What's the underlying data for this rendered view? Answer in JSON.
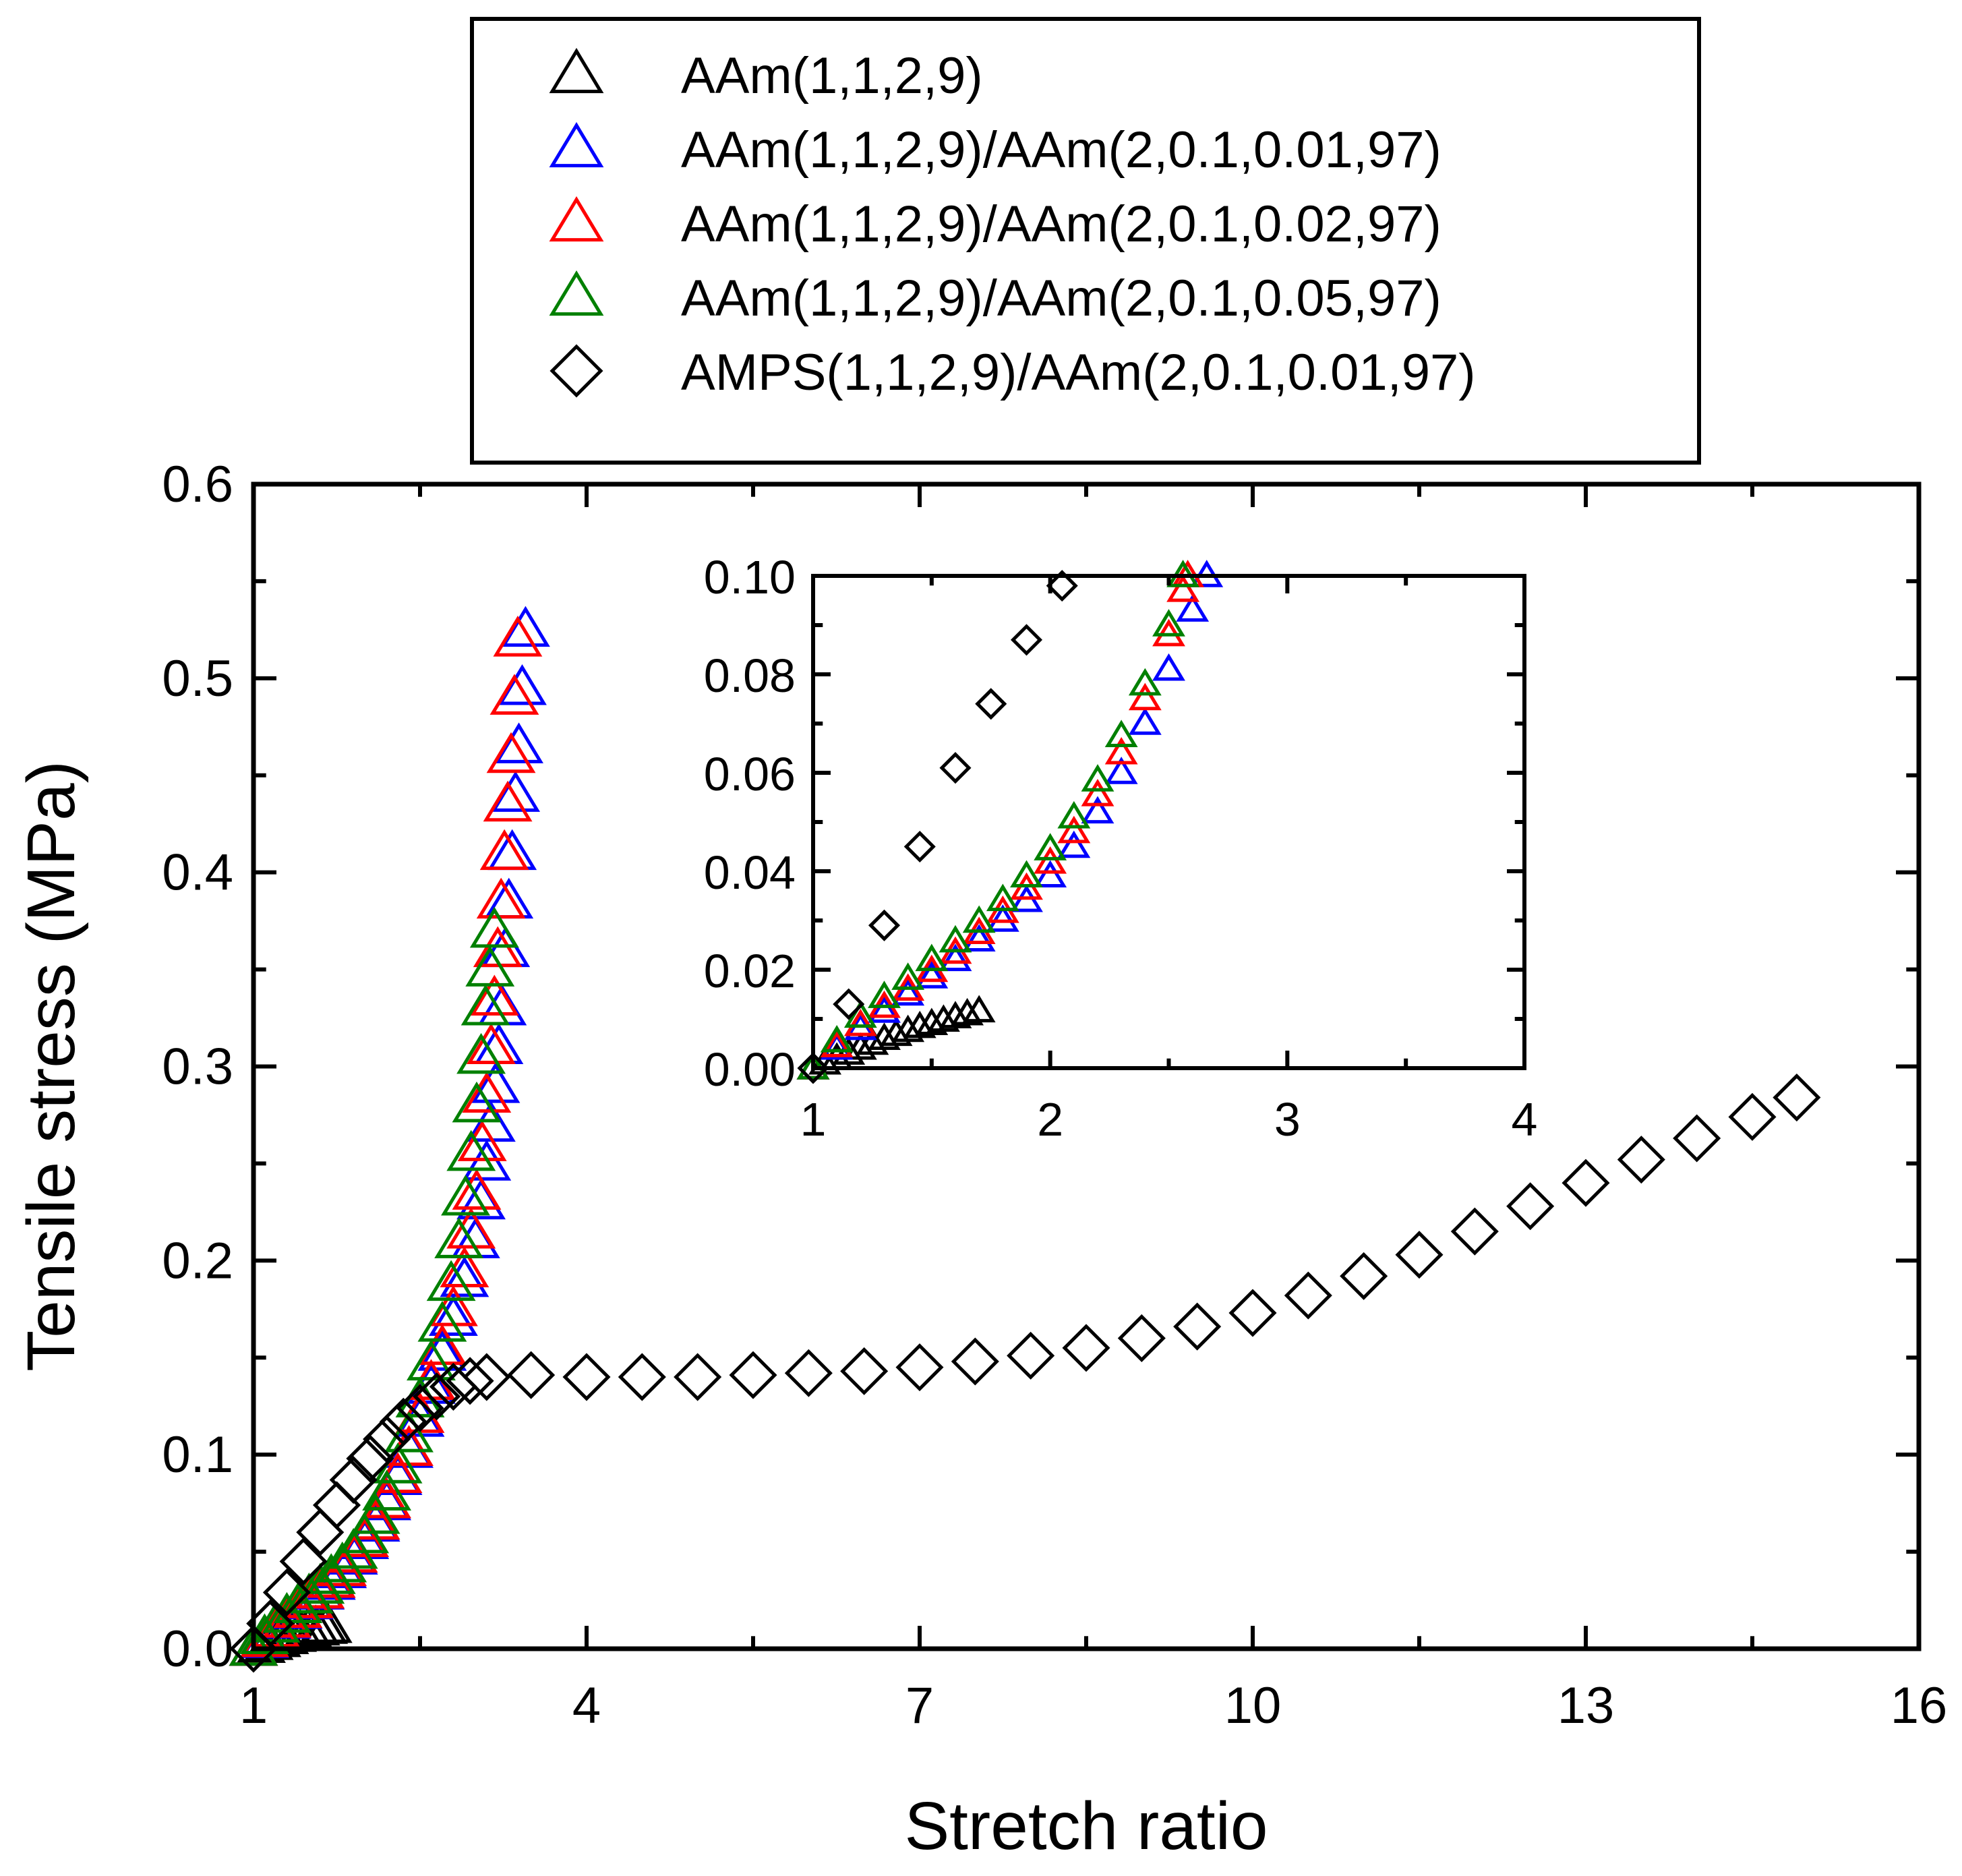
{
  "chart_data": {
    "type": "scatter",
    "xlabel": "Stretch ratio",
    "ylabel": "Tensile stress (MPa)",
    "xlim": [
      1,
      16
    ],
    "ylim": [
      0,
      0.6
    ],
    "xticks": [
      1,
      4,
      7,
      10,
      13,
      16
    ],
    "yticks": [
      "0.0",
      "0.1",
      "0.2",
      "0.3",
      "0.4",
      "0.5",
      "0.6"
    ],
    "legend_position": "top-center, outside plot",
    "grid": false,
    "series": [
      {
        "name": "AAm(1,1,2,9)",
        "marker": "triangle",
        "color": "#000000",
        "points": [
          [
            1.0,
            0.0
          ],
          [
            1.07,
            0.0015
          ],
          [
            1.14,
            0.003
          ],
          [
            1.21,
            0.0045
          ],
          [
            1.28,
            0.006
          ],
          [
            1.35,
            0.0072
          ],
          [
            1.42,
            0.0085
          ],
          [
            1.49,
            0.0095
          ],
          [
            1.56,
            0.0105
          ],
          [
            1.63,
            0.0113
          ],
          [
            1.67,
            0.0118
          ]
        ]
      },
      {
        "name": "AAm(1,1,2,9)/AAm(2,0.1,0.01,97)",
        "marker": "triangle",
        "color": "#0000ff",
        "points": [
          [
            1.0,
            0.0
          ],
          [
            1.1,
            0.004
          ],
          [
            1.2,
            0.009
          ],
          [
            1.3,
            0.014
          ],
          [
            1.4,
            0.019
          ],
          [
            1.5,
            0.024
          ],
          [
            1.6,
            0.029
          ],
          [
            1.7,
            0.034
          ],
          [
            1.8,
            0.04
          ],
          [
            1.9,
            0.047
          ],
          [
            2.0,
            0.055
          ],
          [
            2.1,
            0.064
          ],
          [
            2.2,
            0.075
          ],
          [
            2.3,
            0.088
          ],
          [
            2.4,
            0.102
          ],
          [
            2.5,
            0.118
          ],
          [
            2.6,
            0.135
          ],
          [
            2.7,
            0.152
          ],
          [
            2.8,
            0.17
          ],
          [
            2.9,
            0.19
          ],
          [
            3.0,
            0.21
          ],
          [
            3.05,
            0.23
          ],
          [
            3.1,
            0.25
          ],
          [
            3.14,
            0.27
          ],
          [
            3.18,
            0.29
          ],
          [
            3.21,
            0.31
          ],
          [
            3.24,
            0.33
          ],
          [
            3.27,
            0.36
          ],
          [
            3.3,
            0.385
          ],
          [
            3.33,
            0.41
          ],
          [
            3.36,
            0.44
          ],
          [
            3.39,
            0.465
          ],
          [
            3.42,
            0.495
          ],
          [
            3.45,
            0.525
          ]
        ]
      },
      {
        "name": "AAm(1,1,2,9)/AAm(2,0.1,0.02,97)",
        "marker": "triangle",
        "color": "#ff0000",
        "points": [
          [
            1.0,
            0.0
          ],
          [
            1.1,
            0.0045
          ],
          [
            1.2,
            0.0095
          ],
          [
            1.3,
            0.0145
          ],
          [
            1.4,
            0.0195
          ],
          [
            1.5,
            0.0245
          ],
          [
            1.6,
            0.0295
          ],
          [
            1.7,
            0.035
          ],
          [
            1.8,
            0.041
          ],
          [
            1.9,
            0.048
          ],
          [
            2.0,
            0.056
          ],
          [
            2.1,
            0.065
          ],
          [
            2.2,
            0.076
          ],
          [
            2.3,
            0.089
          ],
          [
            2.4,
            0.103
          ],
          [
            2.5,
            0.12
          ],
          [
            2.6,
            0.137
          ],
          [
            2.7,
            0.155
          ],
          [
            2.8,
            0.175
          ],
          [
            2.9,
            0.195
          ],
          [
            2.96,
            0.215
          ],
          [
            3.01,
            0.235
          ],
          [
            3.06,
            0.26
          ],
          [
            3.1,
            0.285
          ],
          [
            3.14,
            0.31
          ],
          [
            3.17,
            0.335
          ],
          [
            3.2,
            0.36
          ],
          [
            3.23,
            0.385
          ],
          [
            3.26,
            0.41
          ],
          [
            3.29,
            0.435
          ],
          [
            3.32,
            0.46
          ],
          [
            3.35,
            0.49
          ],
          [
            3.38,
            0.52
          ]
        ]
      },
      {
        "name": "AAm(1,1,2,9)/AAm(2,0.1,0.05,97)",
        "marker": "triangle",
        "color": "#008000",
        "points": [
          [
            1.0,
            0.0
          ],
          [
            1.1,
            0.006
          ],
          [
            1.2,
            0.012
          ],
          [
            1.3,
            0.017
          ],
          [
            1.4,
            0.022
          ],
          [
            1.5,
            0.027
          ],
          [
            1.6,
            0.032
          ],
          [
            1.7,
            0.037
          ],
          [
            1.8,
            0.043
          ],
          [
            1.9,
            0.05
          ],
          [
            2.0,
            0.058
          ],
          [
            2.1,
            0.068
          ],
          [
            2.2,
            0.08
          ],
          [
            2.3,
            0.094
          ],
          [
            2.4,
            0.11
          ],
          [
            2.5,
            0.128
          ],
          [
            2.6,
            0.147
          ],
          [
            2.7,
            0.167
          ],
          [
            2.78,
            0.188
          ],
          [
            2.85,
            0.21
          ],
          [
            2.91,
            0.232
          ],
          [
            2.96,
            0.255
          ],
          [
            3.01,
            0.28
          ],
          [
            3.05,
            0.305
          ],
          [
            3.09,
            0.33
          ],
          [
            3.13,
            0.35
          ],
          [
            3.17,
            0.37
          ]
        ]
      },
      {
        "name": "AMPS(1,1,2,9)/AAm(2,0.1,0.01,97)",
        "marker": "diamond",
        "color": "#000000",
        "points": [
          [
            1.0,
            0.0
          ],
          [
            1.15,
            0.013
          ],
          [
            1.3,
            0.029
          ],
          [
            1.45,
            0.045
          ],
          [
            1.6,
            0.06
          ],
          [
            1.75,
            0.074
          ],
          [
            1.9,
            0.087
          ],
          [
            2.05,
            0.098
          ],
          [
            2.2,
            0.108
          ],
          [
            2.35,
            0.117
          ],
          [
            2.5,
            0.124
          ],
          [
            2.65,
            0.13
          ],
          [
            2.8,
            0.135
          ],
          [
            2.95,
            0.138
          ],
          [
            3.1,
            0.14
          ],
          [
            3.5,
            0.141
          ],
          [
            4.0,
            0.14
          ],
          [
            4.5,
            0.14
          ],
          [
            5.0,
            0.14
          ],
          [
            5.5,
            0.141
          ],
          [
            6.0,
            0.142
          ],
          [
            6.5,
            0.143
          ],
          [
            7.0,
            0.145
          ],
          [
            7.5,
            0.148
          ],
          [
            8.0,
            0.151
          ],
          [
            8.5,
            0.155
          ],
          [
            9.0,
            0.16
          ],
          [
            9.5,
            0.166
          ],
          [
            10.0,
            0.173
          ],
          [
            10.5,
            0.182
          ],
          [
            11.0,
            0.192
          ],
          [
            11.5,
            0.203
          ],
          [
            12.0,
            0.215
          ],
          [
            12.5,
            0.228
          ],
          [
            13.0,
            0.24
          ],
          [
            13.5,
            0.252
          ],
          [
            14.0,
            0.263
          ],
          [
            14.5,
            0.274
          ],
          [
            14.9,
            0.284
          ]
        ]
      }
    ],
    "inset": {
      "xlim": [
        1,
        4
      ],
      "ylim": [
        0,
        0.1
      ],
      "xticks": [
        1,
        2,
        3,
        4
      ],
      "yticks": [
        "0.00",
        "0.02",
        "0.04",
        "0.06",
        "0.08",
        "0.10"
      ],
      "series": [
        {
          "name": "AAm(1,1,2,9)",
          "marker": "triangle",
          "color": "#000000",
          "points": [
            [
              1.0,
              0.0
            ],
            [
              1.05,
              0.001
            ],
            [
              1.1,
              0.002
            ],
            [
              1.15,
              0.003
            ],
            [
              1.2,
              0.004
            ],
            [
              1.25,
              0.005
            ],
            [
              1.3,
              0.006
            ],
            [
              1.35,
              0.0068
            ],
            [
              1.4,
              0.0076
            ],
            [
              1.45,
              0.0084
            ],
            [
              1.5,
              0.009
            ],
            [
              1.55,
              0.0097
            ],
            [
              1.6,
              0.0104
            ],
            [
              1.65,
              0.011
            ],
            [
              1.7,
              0.0116
            ]
          ]
        },
        {
          "name": "AAm(1,1,2,9)/AAm(2,0.1,0.01,97)",
          "marker": "triangle",
          "color": "#0000ff",
          "points": [
            [
              1.0,
              0.0
            ],
            [
              1.1,
              0.004
            ],
            [
              1.2,
              0.008
            ],
            [
              1.3,
              0.0115
            ],
            [
              1.4,
              0.015
            ],
            [
              1.5,
              0.0185
            ],
            [
              1.6,
              0.022
            ],
            [
              1.7,
              0.026
            ],
            [
              1.8,
              0.03
            ],
            [
              1.9,
              0.034
            ],
            [
              2.0,
              0.039
            ],
            [
              2.1,
              0.045
            ],
            [
              2.2,
              0.052
            ],
            [
              2.3,
              0.06
            ],
            [
              2.4,
              0.07
            ],
            [
              2.5,
              0.081
            ],
            [
              2.6,
              0.093
            ],
            [
              2.66,
              0.1
            ]
          ]
        },
        {
          "name": "AAm(1,1,2,9)/AAm(2,0.1,0.02,97)",
          "marker": "triangle",
          "color": "#ff0000",
          "points": [
            [
              1.0,
              0.0
            ],
            [
              1.1,
              0.0045
            ],
            [
              1.2,
              0.0088
            ],
            [
              1.3,
              0.0125
            ],
            [
              1.4,
              0.016
            ],
            [
              1.5,
              0.0198
            ],
            [
              1.6,
              0.0235
            ],
            [
              1.7,
              0.0275
            ],
            [
              1.8,
              0.0318
            ],
            [
              1.9,
              0.0365
            ],
            [
              2.0,
              0.0418
            ],
            [
              2.1,
              0.048
            ],
            [
              2.2,
              0.0555
            ],
            [
              2.3,
              0.064
            ],
            [
              2.4,
              0.075
            ],
            [
              2.5,
              0.088
            ],
            [
              2.56,
              0.097
            ],
            [
              2.58,
              0.1
            ]
          ]
        },
        {
          "name": "AAm(1,1,2,9)/AAm(2,0.1,0.05,97)",
          "marker": "triangle",
          "color": "#008000",
          "points": [
            [
              1.0,
              0.0
            ],
            [
              1.1,
              0.0055
            ],
            [
              1.2,
              0.0105
            ],
            [
              1.3,
              0.0145
            ],
            [
              1.4,
              0.0182
            ],
            [
              1.5,
              0.022
            ],
            [
              1.6,
              0.0258
            ],
            [
              1.7,
              0.0298
            ],
            [
              1.8,
              0.0342
            ],
            [
              1.9,
              0.039
            ],
            [
              2.0,
              0.0445
            ],
            [
              2.1,
              0.051
            ],
            [
              2.2,
              0.0585
            ],
            [
              2.3,
              0.0675
            ],
            [
              2.4,
              0.078
            ],
            [
              2.5,
              0.09
            ],
            [
              2.56,
              0.1
            ]
          ]
        },
        {
          "name": "AMPS(1,1,2,9)/AAm(2,0.1,0.01,97)",
          "marker": "diamond",
          "color": "#000000",
          "points": [
            [
              1.0,
              0.0
            ],
            [
              1.15,
              0.013
            ],
            [
              1.3,
              0.029
            ],
            [
              1.45,
              0.045
            ],
            [
              1.6,
              0.061
            ],
            [
              1.75,
              0.074
            ],
            [
              1.9,
              0.087
            ],
            [
              2.05,
              0.098
            ]
          ]
        }
      ]
    }
  }
}
